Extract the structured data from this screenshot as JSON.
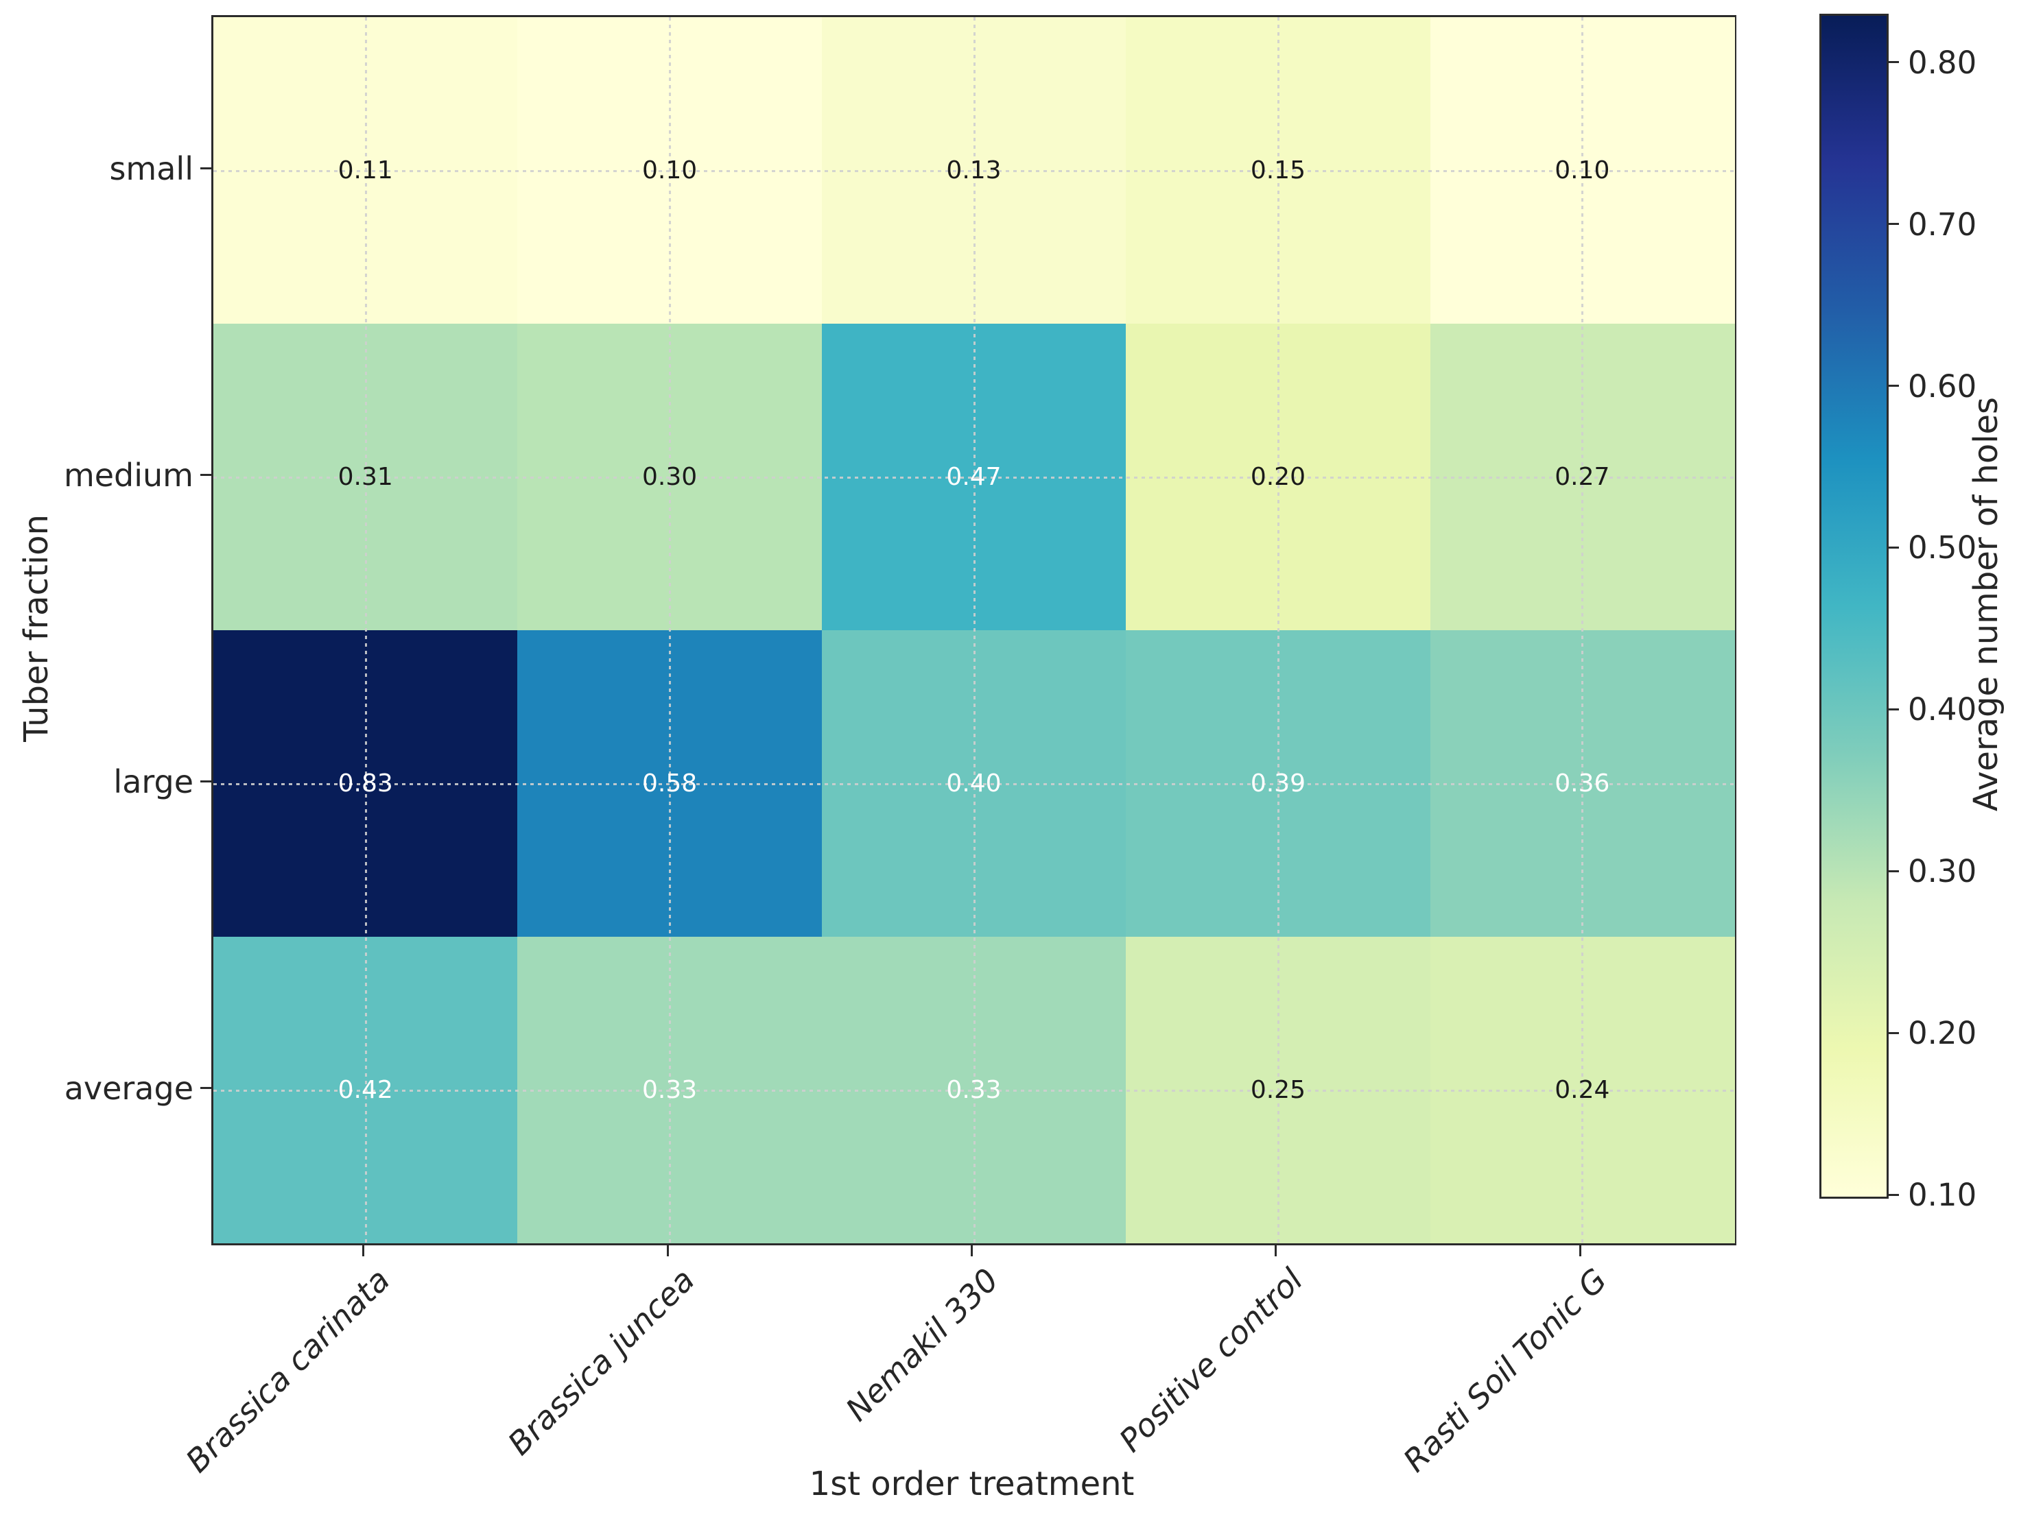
{
  "chart_data": {
    "type": "heatmap",
    "title": "",
    "xlabel": "1st order treatment",
    "ylabel": "Tuber fraction",
    "x_categories": [
      "Brassica carinata",
      "Brassica juncea",
      "Nemakil 330",
      "Positive control",
      "Rasti Soil Tonic G"
    ],
    "y_categories": [
      "small",
      "medium",
      "large",
      "average"
    ],
    "values": [
      [
        0.11,
        0.1,
        0.13,
        0.15,
        0.1
      ],
      [
        0.31,
        0.3,
        0.47,
        0.2,
        0.27
      ],
      [
        0.83,
        0.58,
        0.4,
        0.39,
        0.36
      ],
      [
        0.42,
        0.33,
        0.33,
        0.25,
        0.24
      ]
    ],
    "value_labels": [
      [
        "0.11",
        "0.10",
        "0.13",
        "0.15",
        "0.10"
      ],
      [
        "0.31",
        "0.30",
        "0.47",
        "0.20",
        "0.27"
      ],
      [
        "0.83",
        "0.58",
        "0.40",
        "0.39",
        "0.36"
      ],
      [
        "0.42",
        "0.33",
        "0.33",
        "0.25",
        "0.24"
      ]
    ],
    "cell_colors": [
      [
        "#fdfed4",
        "#ffffd9",
        "#f9fccc",
        "#f5fbc3",
        "#ffffd9"
      ],
      [
        "#b1e0b6",
        "#b9e4b5",
        "#3fb4c4",
        "#e9f6b1",
        "#ccebb4"
      ],
      [
        "#081d58",
        "#1e84ba",
        "#6dc6be",
        "#74c9bd",
        "#8ad1ba"
      ],
      [
        "#60c1c0",
        "#a1dab8",
        "#a1dab8",
        "#d4eeb3",
        "#d9f0b3"
      ]
    ],
    "cell_text_colors": [
      [
        "#1a1a1a",
        "#1a1a1a",
        "#1a1a1a",
        "#1a1a1a",
        "#1a1a1a"
      ],
      [
        "#1a1a1a",
        "#1a1a1a",
        "#ffffff",
        "#1a1a1a",
        "#1a1a1a"
      ],
      [
        "#ffffff",
        "#ffffff",
        "#ffffff",
        "#ffffff",
        "#ffffff"
      ],
      [
        "#ffffff",
        "#ffffff",
        "#ffffff",
        "#1a1a1a",
        "#1a1a1a"
      ]
    ],
    "colormap": "YlGnBu",
    "vmin": 0.1,
    "vmax": 0.83,
    "grid": {
      "style": "dotted",
      "color": "#cfcfcf"
    },
    "legend_position": "right-colorbar",
    "colorbar": {
      "label": "Average number of holes",
      "tick_labels": [
        "0.10",
        "0.20",
        "0.30",
        "0.40",
        "0.50",
        "0.60",
        "0.70",
        "0.80"
      ],
      "tick_values": [
        0.1,
        0.2,
        0.3,
        0.4,
        0.5,
        0.6,
        0.7,
        0.8
      ],
      "gradient": [
        {
          "t": 0.0,
          "color": "#ffffd9"
        },
        {
          "t": 0.125,
          "color": "#edf8b1"
        },
        {
          "t": 0.25,
          "color": "#c7e9b4"
        },
        {
          "t": 0.375,
          "color": "#7fcdbb"
        },
        {
          "t": 0.5,
          "color": "#41b6c4"
        },
        {
          "t": 0.625,
          "color": "#1d91c0"
        },
        {
          "t": 0.75,
          "color": "#225ea8"
        },
        {
          "t": 0.875,
          "color": "#253494"
        },
        {
          "t": 1.0,
          "color": "#081d58"
        }
      ]
    },
    "text_color": "#262626",
    "spine_color": "#2b2b2b"
  }
}
